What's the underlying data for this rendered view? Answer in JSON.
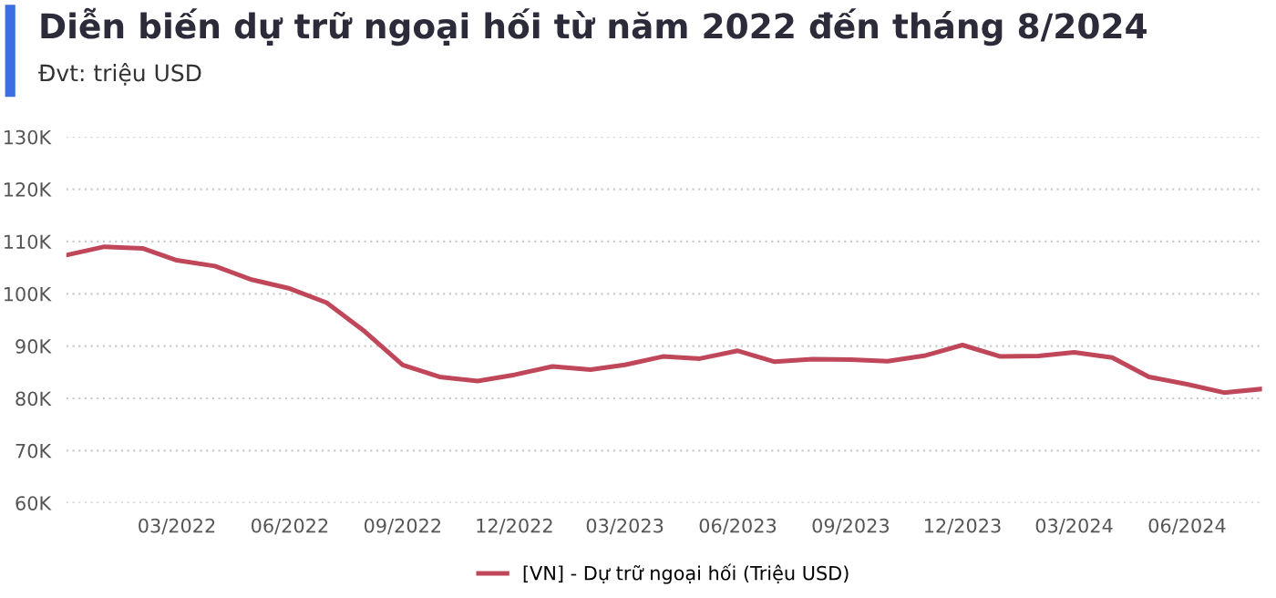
{
  "chart_data": {
    "type": "line",
    "title": "Diễn biến dự trữ ngoại hối từ năm 2022 đến tháng 8/2024",
    "subtitle": "Đvt: triệu USD",
    "x": [
      "2021-12",
      "2022-01",
      "2022-02",
      "2022-03",
      "2022-04",
      "2022-05",
      "2022-06",
      "2022-07",
      "2022-08",
      "2022-09",
      "2022-10",
      "2022-11",
      "2022-12",
      "2023-01",
      "2023-02",
      "2023-03",
      "2023-04",
      "2023-05",
      "2023-06",
      "2023-07",
      "2023-08",
      "2023-09",
      "2023-10",
      "2023-11",
      "2023-12",
      "2024-01",
      "2024-02",
      "2024-03",
      "2024-04",
      "2024-05",
      "2024-06",
      "2024-07",
      "2024-08"
    ],
    "series": [
      {
        "name": "[VN] - Dự trữ ngoại hối (Triệu USD)",
        "color": "#c0475a",
        "values": [
          107400,
          109000,
          108700,
          106400,
          105300,
          102700,
          101000,
          98300,
          92800,
          86400,
          84100,
          83300,
          84500,
          86100,
          85500,
          86400,
          88000,
          87600,
          89100,
          87000,
          87500,
          87400,
          87100,
          88200,
          90200,
          88000,
          88100,
          88800,
          87800,
          84100,
          82700,
          81100,
          81800
        ]
      }
    ],
    "xlim": [
      "2021-12",
      "2024-08"
    ],
    "xticks": [
      {
        "value": "2022-03",
        "label": "03/2022"
      },
      {
        "value": "2022-06",
        "label": "06/2022"
      },
      {
        "value": "2022-09",
        "label": "09/2022"
      },
      {
        "value": "2022-12",
        "label": "12/2022"
      },
      {
        "value": "2023-03",
        "label": "03/2023"
      },
      {
        "value": "2023-06",
        "label": "06/2023"
      },
      {
        "value": "2023-09",
        "label": "09/2023"
      },
      {
        "value": "2023-12",
        "label": "12/2023"
      },
      {
        "value": "2024-03",
        "label": "03/2024"
      },
      {
        "value": "2024-06",
        "label": "06/2024"
      }
    ],
    "ylim": [
      60000,
      130000
    ],
    "yticks": [
      {
        "value": 60000,
        "label": "60K"
      },
      {
        "value": 70000,
        "label": "70K"
      },
      {
        "value": 80000,
        "label": "80K"
      },
      {
        "value": 90000,
        "label": "90K"
      },
      {
        "value": 100000,
        "label": "100K"
      },
      {
        "value": 110000,
        "label": "110K"
      },
      {
        "value": 120000,
        "label": "120K"
      },
      {
        "value": 130000,
        "label": "130K"
      }
    ],
    "grid": "y",
    "legend": "bottom",
    "marker": "none",
    "line_style": "solid"
  }
}
